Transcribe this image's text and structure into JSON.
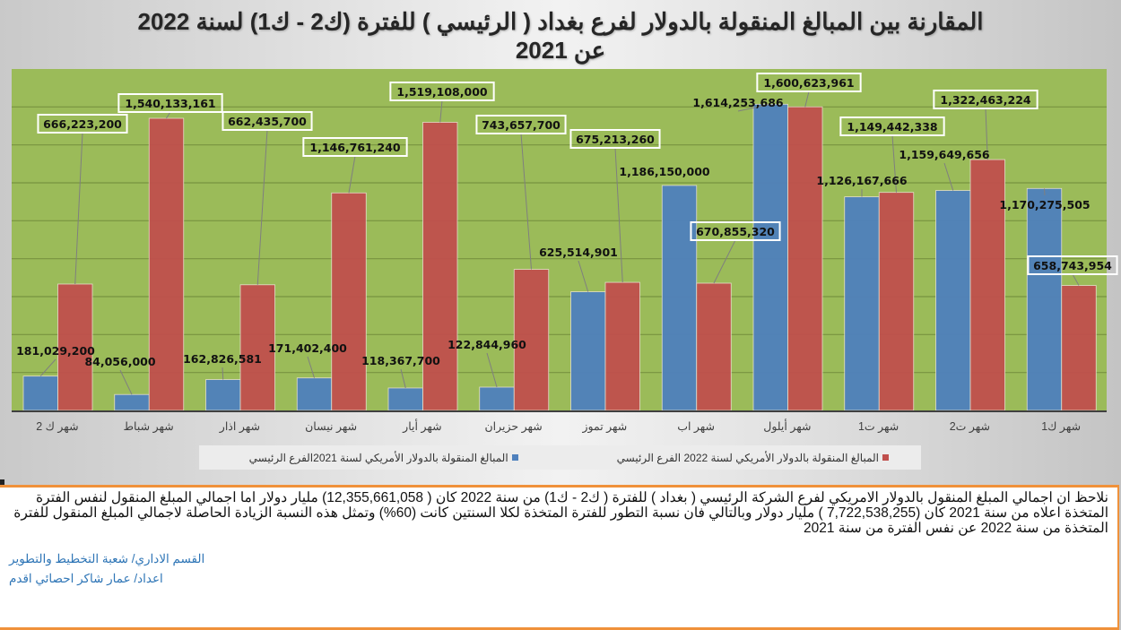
{
  "chart_data": {
    "type": "bar",
    "title_line1": "المقارنة بين المبالغ المنقولة بالدولار لفرع بغداد ( الرئيسي ) للفترة (ك2 - ك1) لسنة 2022",
    "title_line2": "عن 2021",
    "xlabel": "",
    "ylabel": "",
    "ylim": [
      0,
      1800000000
    ],
    "y_grid_step": 200000000,
    "grid": true,
    "y_tick_labels_visible": false,
    "legend_position": "bottom",
    "categories": [
      "شهر ك 2",
      "شهر شباط",
      "شهر اذار",
      "شهر نيسان",
      "شهر أيار",
      "شهر حزيران",
      "شهر تموز",
      "شهر اب",
      "شهر أيلول",
      "شهر ت1",
      "شهر ت2",
      "شهر ك1"
    ],
    "series": [
      {
        "name": "المبالغ المنقولة بالدولار الأمريكي لسنة 2021الفرع الرئيسي",
        "color": "#4f81bd",
        "values": [
          181029200,
          84056000,
          162826581,
          171402400,
          118367700,
          122844960,
          625514901,
          1186150000,
          1614253686,
          1126167666,
          1159649656,
          1170275505
        ],
        "labels": [
          "181,029,200",
          "84,056,000",
          "162,826,581",
          "171,402,400",
          "118,367,700",
          "122,844,960",
          "625,514,901",
          "1,186,150,000",
          "1,614,253,686",
          "1,126,167,666",
          "1,159,649,656",
          "1,170,275,505"
        ]
      },
      {
        "name": "المبالغ المنقولة بالدولار الأمريكي لسنة 2022 الفرع الرئيسي",
        "color": "#c0504d",
        "values": [
          666223200,
          1540133161,
          662435700,
          1146761240,
          1519108000,
          743657700,
          675213260,
          670855320,
          1600623961,
          1149442338,
          1322463224,
          658743954
        ],
        "labels": [
          "666,223,200",
          "1,540,133,161",
          "662,435,700",
          "1,146,761,240",
          "1,519,108,000",
          "743,657,700",
          "675,213,260",
          "670,855,320",
          "1,600,623,961",
          "1,149,442,338",
          "1,322,463,224",
          "658,743,954"
        ]
      }
    ],
    "plot_background": "#9bbb59"
  },
  "legend": {
    "item_2022": "المبالغ المنقولة بالدولار الأمريكي لسنة 2022 الفرع الرئيسي",
    "item_2021": "المبالغ المنقولة بالدولار الأمريكي لسنة 2021الفرع الرئيسي",
    "color_2022": "#c0504d",
    "color_2021": "#4f81bd"
  },
  "notes": {
    "paragraph": "نلاحظ ان اجمالي المبلغ المنقول بالدولار الامريكي لفرع الشركة الرئيسي ( بغداد ) للفترة ( ك2 - ك1) من سنة 2022  كان ( 12,355,661,058) مليار دولار اما اجمالي المبلغ المنقول لنفس الفترة المتخذة اعلاه من سنة 2021 كان (7,722,538,255 ) مليار دولار وبالتالي فان نسبة التطور للفترة المتخذة لكلا السنتين كانت (60%) وتمثل هذه النسبة الزيادة الحاصلة لاجمالي المبلغ المنقول للفترة المتخذة من سنة 2022 عن نفس الفترة من سنة 2021",
    "credit_department": "القسم الاداري/ شعبة التخطيط والتطوير",
    "credit_author": "اعداد/ عمار شاكر احصائي اقدم"
  }
}
